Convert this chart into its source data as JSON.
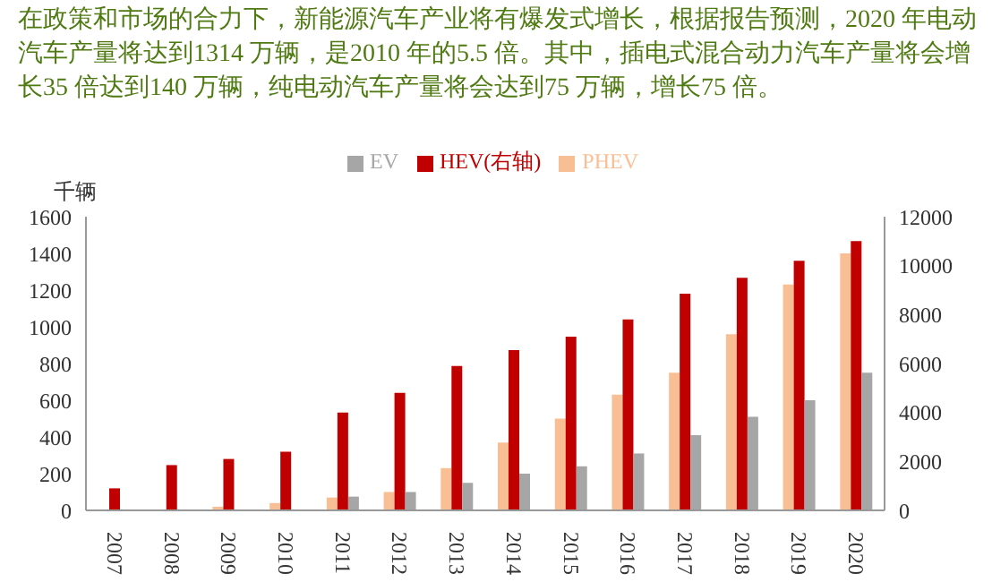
{
  "chart_data": {
    "type": "bar",
    "title": "在政策和市场的合力下，新能源汽车产业将有爆发式增长，根据报告预测，2020 年电动汽车产量将达到1314 万辆，是2010 年的5.5 倍。其中，插电式混合动力汽车产量将会增长35 倍达到140 万辆，纯电动汽车产量将会达到75 万辆，增长75 倍。",
    "ylabel": "千辆",
    "categories": [
      "2007",
      "2008",
      "2009",
      "2010",
      "2011",
      "2012",
      "2013",
      "2014",
      "2015",
      "2016",
      "2017",
      "2018",
      "2019",
      "2020"
    ],
    "series": [
      {
        "name": "PHEV",
        "color": "#f9bf94",
        "values": [
          0,
          5,
          20,
          40,
          70,
          100,
          230,
          370,
          500,
          630,
          750,
          960,
          1230,
          1400
        ]
      },
      {
        "name": "HEV(右轴)",
        "color": "#c00000",
        "axis": "y2",
        "values": [
          900,
          1850,
          2100,
          2400,
          4000,
          4800,
          5900,
          6550,
          7100,
          7800,
          8850,
          9500,
          10200,
          11000
        ]
      },
      {
        "name": "EV",
        "color": "#a6a6a6",
        "values": [
          0,
          0,
          0,
          5,
          75,
          100,
          150,
          200,
          240,
          310,
          410,
          510,
          600,
          750
        ]
      }
    ],
    "ylim": [
      0,
      1600
    ],
    "yticks": [
      0,
      200,
      400,
      600,
      800,
      1000,
      1200,
      1400,
      1600
    ],
    "y2lim": [
      0,
      12000
    ],
    "y2ticks": [
      0,
      2000,
      4000,
      6000,
      8000,
      10000,
      12000
    ],
    "legend": "top",
    "grid": false
  }
}
